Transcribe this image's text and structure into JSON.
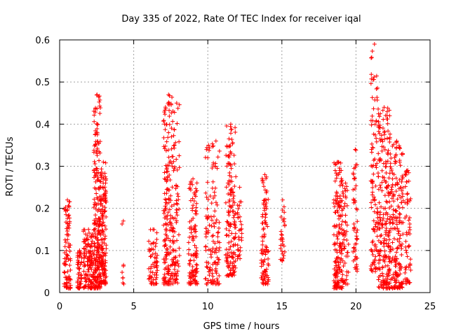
{
  "chart_data": {
    "type": "scatter",
    "title": "Day 335 of 2022, Rate Of TEC Index for receiver iqal",
    "xlabel": "GPS time / hours",
    "ylabel": "ROTI / TECUs",
    "xlim": [
      0,
      25
    ],
    "ylim": [
      0,
      0.6
    ],
    "xticks": [
      0,
      5,
      10,
      15,
      20,
      25
    ],
    "yticks": [
      0,
      0.1,
      0.2,
      0.3,
      0.4,
      0.5,
      0.6
    ],
    "xtick_labels": [
      "0",
      "5",
      "10",
      "15",
      "20",
      "25"
    ],
    "ytick_labels": [
      "0",
      "0.1",
      "0.2",
      "0.3",
      "0.4",
      "0.5",
      "0.6"
    ],
    "grid": true,
    "marker": "+",
    "color": "#ff0000",
    "clusters": [
      {
        "x": [
          0.3,
          0.75
        ],
        "ymin": 0.01,
        "ymax": 0.22,
        "n": 90
      },
      {
        "x": [
          1.2,
          1.5
        ],
        "ymin": 0.01,
        "ymax": 0.1,
        "n": 50
      },
      {
        "x": [
          1.6,
          2.3
        ],
        "ymin": 0.01,
        "ymax": 0.15,
        "n": 140
      },
      {
        "x": [
          2.3,
          2.75
        ],
        "ymin": 0.01,
        "ymax": 0.47,
        "n": 220
      },
      {
        "x": [
          2.75,
          3.15
        ],
        "ymin": 0.02,
        "ymax": 0.31,
        "n": 150
      },
      {
        "x": [
          4.2,
          4.4
        ],
        "ymin": 0.02,
        "ymax": 0.17,
        "n": 8
      },
      {
        "x": [
          6.0,
          6.6
        ],
        "ymin": 0.02,
        "ymax": 0.15,
        "n": 60
      },
      {
        "x": [
          7.0,
          7.7
        ],
        "ymin": 0.02,
        "ymax": 0.47,
        "n": 200
      },
      {
        "x": [
          7.7,
          8.1
        ],
        "ymin": 0.02,
        "ymax": 0.45,
        "n": 70
      },
      {
        "x": [
          8.7,
          9.3
        ],
        "ymin": 0.02,
        "ymax": 0.27,
        "n": 110
      },
      {
        "x": [
          9.8,
          10.3
        ],
        "ymin": 0.02,
        "ymax": 0.35,
        "n": 60
      },
      {
        "x": [
          10.3,
          10.8
        ],
        "ymin": 0.02,
        "ymax": 0.36,
        "n": 70
      },
      {
        "x": [
          11.2,
          11.9
        ],
        "ymin": 0.04,
        "ymax": 0.4,
        "n": 160
      },
      {
        "x": [
          12.0,
          12.3
        ],
        "ymin": 0.08,
        "ymax": 0.25,
        "n": 30
      },
      {
        "x": [
          13.6,
          14.1
        ],
        "ymin": 0.02,
        "ymax": 0.28,
        "n": 100
      },
      {
        "x": [
          14.9,
          15.2
        ],
        "ymin": 0.07,
        "ymax": 0.22,
        "n": 30
      },
      {
        "x": [
          18.5,
          19.1
        ],
        "ymin": 0.01,
        "ymax": 0.31,
        "n": 170
      },
      {
        "x": [
          19.1,
          19.5
        ],
        "ymin": 0.02,
        "ymax": 0.26,
        "n": 50
      },
      {
        "x": [
          19.8,
          20.1
        ],
        "ymin": 0.05,
        "ymax": 0.34,
        "n": 50
      },
      {
        "x": [
          21.0,
          21.5
        ],
        "ymin": 0.05,
        "ymax": 0.59,
        "n": 110
      },
      {
        "x": [
          21.5,
          22.3
        ],
        "ymin": 0.01,
        "ymax": 0.44,
        "n": 230
      },
      {
        "x": [
          22.3,
          23.2
        ],
        "ymin": 0.01,
        "ymax": 0.36,
        "n": 200
      },
      {
        "x": [
          23.3,
          23.7
        ],
        "ymin": 0.02,
        "ymax": 0.29,
        "n": 60
      }
    ]
  }
}
